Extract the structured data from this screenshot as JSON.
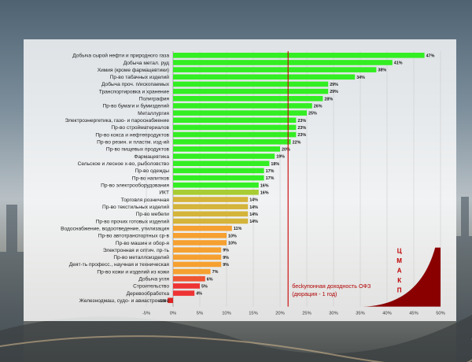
{
  "chart_data": {
    "type": "bar",
    "orientation": "horizontal",
    "categories": [
      "Добыча сырой нефти и природного газа",
      "Добыча метал. руд",
      "Химия (кроме фармацевтики)",
      "Пр-во табачных изделий",
      "Добыча проч. п/ископаемых",
      "Транспортировка и хранение",
      "Полиграфия",
      "Пр-во бумаги и бумизделий",
      "Металлургия",
      "Электроэнергетика, газо- и пароснабжение",
      "Пр-во стройматериалов",
      "Пр-во кокса и нефтепродуктов",
      "Пр-во резин. и пластм. изд-ий",
      "Пр-во пищевых продуктов",
      "Фармацевтика",
      "Сельское и лесное х-во, рыболовство",
      "Пр-во одежды",
      "Пр-во напитков",
      "Пр-во электрооборудования",
      "ИКТ",
      "Торговля розничная",
      "Пр-во текстильных изделий",
      "Пр-во мебели",
      "Пр-во прочих готовых изделий",
      "Водоснабжение, водоотведение, утилизация",
      "Пр-во автотранспортных ср-в",
      "Пр-во машин и обор-я",
      "Электронная и оптич. пр-ть",
      "Пр-во металлоизделий",
      "Деят-ть професс., научная и техническая",
      "Пр-во кожи и изделий из кожи",
      "Добыча угля",
      "Строительство",
      "Деревообработка",
      "Железнодмаш, судо- и авиастроение"
    ],
    "values": [
      47,
      41,
      38,
      34,
      29,
      29,
      28,
      26,
      25,
      23,
      23,
      23,
      22,
      20,
      19,
      18,
      17,
      17,
      16,
      16,
      14,
      14,
      14,
      14,
      11,
      10,
      10,
      9,
      9,
      9,
      7,
      6,
      5,
      4,
      -1
    ],
    "value_labels": [
      "47%",
      "41%",
      "38%",
      "34%",
      "29%",
      "29%",
      "28%",
      "26%",
      "25%",
      "23%",
      "23%",
      "23%",
      "22%",
      "20%",
      "19%",
      "18%",
      "17%",
      "17%",
      "16%",
      "16%",
      "14%",
      "14%",
      "14%",
      "14%",
      "11%",
      "10%",
      "10%",
      "9%",
      "9%",
      "9%",
      "7%",
      "6%",
      "5%",
      "4%",
      "-1%"
    ],
    "bar_colors": [
      "#33ee22",
      "#33ee22",
      "#33ee22",
      "#33ee22",
      "#33ee22",
      "#33ee22",
      "#33ee22",
      "#33ee22",
      "#33ee22",
      "#33ee22",
      "#33ee22",
      "#33ee22",
      "#33ee22",
      "#33ee22",
      "#33ee22",
      "#33ee22",
      "#33ee22",
      "#33ee22",
      "#33ee22",
      "#a8cc33",
      "#d4b43a",
      "#d4b43a",
      "#d4b43a",
      "#d4b43a",
      "#f5a030",
      "#f5a030",
      "#f5a030",
      "#f5a030",
      "#f5a030",
      "#f5a030",
      "#f5a030",
      "#ee5533",
      "#ee3333",
      "#ee3333",
      "#dd2222"
    ],
    "xlim": [
      -5,
      50
    ],
    "xticks": [
      -5,
      0,
      5,
      10,
      15,
      20,
      25,
      30,
      35,
      40,
      45,
      50
    ],
    "xtick_labels": [
      "-5%",
      "0%",
      "5%",
      "10%",
      "15%",
      "20%",
      "25%",
      "30%",
      "35%",
      "40%",
      "45%",
      "50%"
    ],
    "grid": "vertical",
    "reference_line": {
      "value": 21.5,
      "color": "#cc0000",
      "label_lines": [
        "бесkупонная доходность ОФЗ",
        "(дюрация - 1 год)"
      ]
    },
    "logo": {
      "letters": [
        "Ц",
        "М",
        "А",
        "К",
        "П"
      ],
      "color": "#8a0000"
    }
  }
}
